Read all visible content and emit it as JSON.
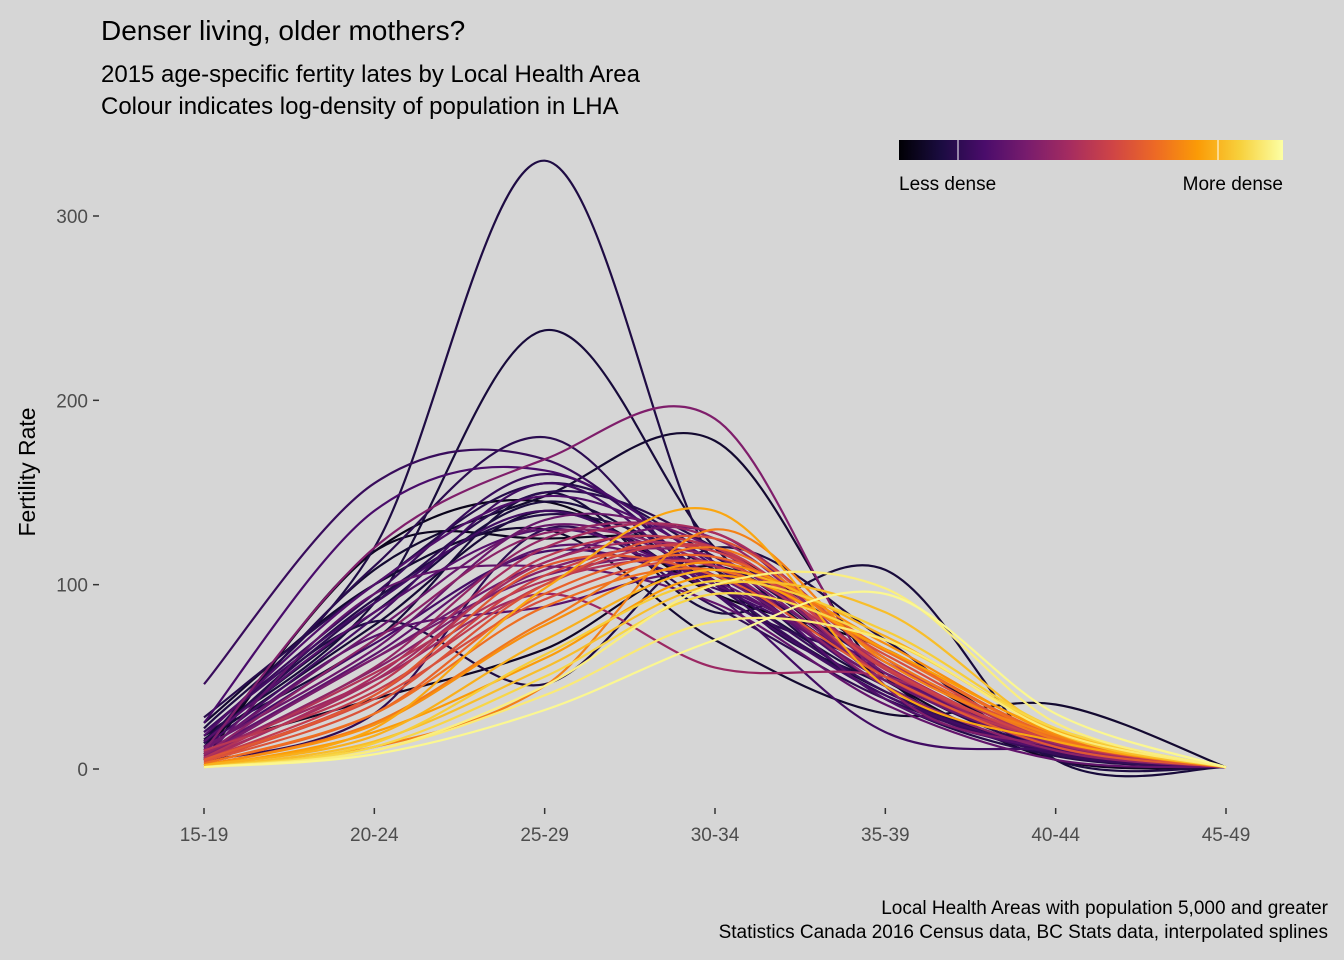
{
  "chart_data": {
    "type": "line",
    "title": "Denser living, older mothers?",
    "subtitle_lines": [
      "2015 age-specific fertity lates by Local Health Area",
      "Colour indicates log-density of population in LHA"
    ],
    "xlabel": "",
    "ylabel": "Fertility Rate",
    "categories": [
      "15-19",
      "20-24",
      "25-29",
      "30-34",
      "35-39",
      "40-44",
      "45-49"
    ],
    "ylim": [
      -15,
      345
    ],
    "yticks": [
      0,
      100,
      200,
      300
    ],
    "grid": false,
    "legend": {
      "position": "top-right",
      "type": "colorbar",
      "low_label": "Less dense",
      "high_label": "More dense",
      "palette": [
        "#000004",
        "#1b0c41",
        "#4a0c6b",
        "#781c6d",
        "#a52c60",
        "#cf4446",
        "#ed6925",
        "#fb9b06",
        "#f7d13d",
        "#fcffa4"
      ]
    },
    "caption_lines": [
      "Local Health Areas with population 5,000 and greater",
      "Statistics Canada 2016 Census data, BC Stats data, interpolated splines"
    ],
    "series": [
      {
        "density": 0.12,
        "values": [
          22,
          120,
          330,
          110,
          45,
          8,
          1
        ]
      },
      {
        "density": 0.1,
        "values": [
          18,
          90,
          238,
          120,
          50,
          10,
          1
        ]
      },
      {
        "density": 0.15,
        "values": [
          14,
          110,
          180,
          95,
          55,
          10,
          1
        ]
      },
      {
        "density": 0.35,
        "values": [
          10,
          120,
          168,
          190,
          45,
          12,
          1
        ]
      },
      {
        "density": 0.08,
        "values": [
          12,
          108,
          148,
          178,
          50,
          10,
          1
        ]
      },
      {
        "density": 0.05,
        "values": [
          5,
          118,
          125,
          120,
          60,
          12,
          1
        ]
      },
      {
        "density": 0.18,
        "values": [
          46,
          155,
          168,
          100,
          40,
          8,
          1
        ]
      },
      {
        "density": 0.22,
        "values": [
          25,
          140,
          162,
          110,
          45,
          10,
          1
        ]
      },
      {
        "density": 0.14,
        "values": [
          28,
          100,
          155,
          115,
          55,
          10,
          1
        ]
      },
      {
        "density": 0.04,
        "values": [
          8,
          118,
          145,
          95,
          65,
          12,
          1
        ]
      },
      {
        "density": 0.12,
        "values": [
          14,
          80,
          46,
          120,
          70,
          5,
          1
        ]
      },
      {
        "density": 0.16,
        "values": [
          4,
          30,
          130,
          88,
          38,
          10,
          1
        ]
      },
      {
        "density": 0.2,
        "values": [
          20,
          90,
          140,
          95,
          40,
          10,
          1
        ]
      },
      {
        "density": 0.1,
        "values": [
          18,
          70,
          150,
          85,
          108,
          5,
          1
        ]
      },
      {
        "density": 0.08,
        "values": [
          25,
          100,
          130,
          70,
          30,
          35,
          1
        ]
      },
      {
        "density": 0.3,
        "values": [
          12,
          65,
          135,
          120,
          50,
          12,
          1
        ]
      },
      {
        "density": 0.4,
        "values": [
          8,
          55,
          125,
          125,
          55,
          12,
          1
        ]
      },
      {
        "density": 0.28,
        "values": [
          6,
          95,
          110,
          90,
          35,
          5,
          1
        ]
      },
      {
        "density": 0.45,
        "values": [
          5,
          50,
          120,
          128,
          60,
          15,
          1
        ]
      },
      {
        "density": 0.5,
        "values": [
          10,
          45,
          115,
          120,
          50,
          15,
          1
        ]
      },
      {
        "density": 0.42,
        "values": [
          9,
          48,
          95,
          55,
          50,
          12,
          1
        ]
      },
      {
        "density": 0.25,
        "values": [
          15,
          85,
          130,
          100,
          55,
          12,
          1
        ]
      },
      {
        "density": 0.06,
        "values": [
          12,
          38,
          65,
          110,
          48,
          5,
          1
        ]
      },
      {
        "density": 0.33,
        "values": [
          7,
          60,
          105,
          110,
          50,
          14,
          1
        ]
      },
      {
        "density": 0.55,
        "values": [
          5,
          40,
          105,
          118,
          55,
          15,
          1
        ]
      },
      {
        "density": 0.6,
        "values": [
          4,
          35,
          100,
          125,
          60,
          18,
          1
        ]
      },
      {
        "density": 0.65,
        "values": [
          3,
          30,
          95,
          115,
          65,
          18,
          1
        ]
      },
      {
        "density": 0.7,
        "values": [
          2,
          25,
          80,
          120,
          60,
          16,
          1
        ]
      },
      {
        "density": 0.72,
        "values": [
          2,
          12,
          45,
          130,
          58,
          18,
          1
        ]
      },
      {
        "density": 0.78,
        "values": [
          1,
          20,
          60,
          105,
          65,
          20,
          1
        ]
      },
      {
        "density": 0.8,
        "values": [
          2,
          22,
          98,
          140,
          45,
          15,
          1
        ]
      },
      {
        "density": 0.85,
        "values": [
          1,
          15,
          55,
          100,
          85,
          20,
          1
        ]
      },
      {
        "density": 0.9,
        "values": [
          1,
          12,
          50,
          95,
          70,
          22,
          1
        ]
      },
      {
        "density": 0.95,
        "values": [
          1,
          10,
          40,
          80,
          70,
          20,
          1
        ]
      },
      {
        "density": 0.98,
        "values": [
          1,
          8,
          32,
          70,
          95,
          30,
          1
        ]
      },
      {
        "density": 0.96,
        "values": [
          1,
          10,
          45,
          100,
          98,
          25,
          1
        ]
      },
      {
        "density": 0.62,
        "values": [
          5,
          40,
          110,
          105,
          50,
          12,
          1
        ]
      },
      {
        "density": 0.38,
        "values": [
          8,
          70,
          128,
          110,
          45,
          10,
          1
        ]
      },
      {
        "density": 0.3,
        "values": [
          10,
          75,
          132,
          105,
          48,
          12,
          1
        ]
      },
      {
        "density": 0.15,
        "values": [
          15,
          90,
          150,
          120,
          50,
          10,
          1
        ]
      },
      {
        "density": 0.2,
        "values": [
          12,
          82,
          155,
          95,
          20,
          10,
          1
        ]
      },
      {
        "density": 0.24,
        "values": [
          18,
          100,
          148,
          112,
          38,
          10,
          1
        ]
      },
      {
        "density": 0.26,
        "values": [
          10,
          72,
          88,
          105,
          52,
          12,
          1
        ]
      },
      {
        "density": 0.32,
        "values": [
          8,
          60,
          112,
          128,
          52,
          14,
          1
        ]
      },
      {
        "density": 0.48,
        "values": [
          6,
          52,
          102,
          110,
          58,
          15,
          1
        ]
      },
      {
        "density": 0.58,
        "values": [
          4,
          38,
          92,
          112,
          62,
          16,
          1
        ]
      },
      {
        "density": 0.68,
        "values": [
          3,
          30,
          88,
          108,
          64,
          17,
          1
        ]
      },
      {
        "density": 0.75,
        "values": [
          2,
          24,
          78,
          112,
          68,
          19,
          1
        ]
      },
      {
        "density": 0.82,
        "values": [
          2,
          18,
          70,
          108,
          72,
          21,
          1
        ]
      },
      {
        "density": 0.88,
        "values": [
          1,
          14,
          62,
          102,
          75,
          22,
          1
        ]
      },
      {
        "density": 0.18,
        "values": [
          20,
          95,
          160,
          102,
          42,
          9,
          1
        ]
      },
      {
        "density": 0.11,
        "values": [
          16,
          85,
          145,
          100,
          45,
          8,
          1
        ]
      },
      {
        "density": 0.09,
        "values": [
          15,
          78,
          140,
          95,
          42,
          9,
          1
        ]
      },
      {
        "density": 0.13,
        "values": [
          14,
          92,
          138,
          108,
          38,
          7,
          1
        ]
      },
      {
        "density": 0.21,
        "values": [
          11,
          68,
          118,
          98,
          52,
          11,
          1
        ]
      },
      {
        "density": 0.27,
        "values": [
          9,
          62,
          120,
          102,
          48,
          12,
          1
        ]
      },
      {
        "density": 0.36,
        "values": [
          7,
          54,
          108,
          115,
          50,
          13,
          1
        ]
      },
      {
        "density": 0.44,
        "values": [
          6,
          48,
          112,
          118,
          56,
          14,
          1
        ]
      },
      {
        "density": 0.52,
        "values": [
          5,
          42,
          100,
          120,
          54,
          15,
          1
        ]
      }
    ]
  }
}
